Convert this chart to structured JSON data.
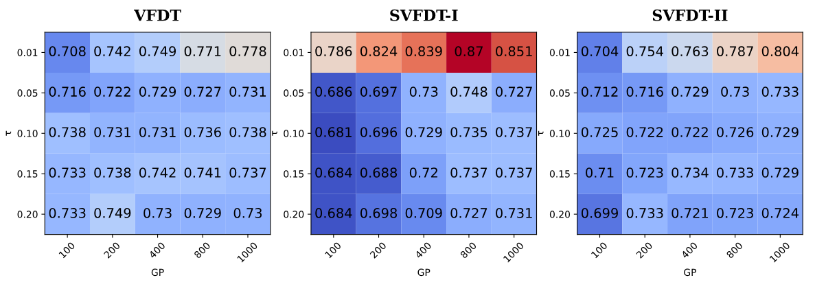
{
  "chart_data": [
    {
      "type": "heatmap",
      "title": "VFDT",
      "xlabel": "GP",
      "ylabel": "τ",
      "data_labels": true,
      "categories": [
        "100",
        "200",
        "400",
        "800",
        "1000"
      ],
      "y_categories": [
        "0.01",
        "0.05",
        "0.10",
        "0.15",
        "0.20"
      ],
      "cells": [
        [
          0.708,
          0.742,
          0.749,
          0.771,
          0.778
        ],
        [
          0.716,
          0.722,
          0.729,
          0.727,
          0.731
        ],
        [
          0.738,
          0.731,
          0.731,
          0.736,
          0.738
        ],
        [
          0.733,
          0.738,
          0.742,
          0.741,
          0.737
        ],
        [
          0.733,
          0.749,
          0.73,
          0.729,
          0.73
        ]
      ]
    },
    {
      "type": "heatmap",
      "title": "SVFDT-I",
      "xlabel": "GP",
      "ylabel": "τ",
      "data_labels": true,
      "categories": [
        "100",
        "200",
        "400",
        "800",
        "1000"
      ],
      "y_categories": [
        "0.01",
        "0.05",
        "0.10",
        "0.15",
        "0.20"
      ],
      "cells": [
        [
          0.786,
          0.824,
          0.839,
          0.87,
          0.851
        ],
        [
          0.686,
          0.697,
          0.73,
          0.748,
          0.727
        ],
        [
          0.681,
          0.696,
          0.729,
          0.735,
          0.737
        ],
        [
          0.684,
          0.688,
          0.72,
          0.737,
          0.737
        ],
        [
          0.684,
          0.698,
          0.709,
          0.727,
          0.731
        ]
      ]
    },
    {
      "type": "heatmap",
      "title": "SVFDT-II",
      "xlabel": "GP",
      "ylabel": "τ",
      "data_labels": true,
      "categories": [
        "100",
        "200",
        "400",
        "800",
        "1000"
      ],
      "y_categories": [
        "0.01",
        "0.05",
        "0.10",
        "0.15",
        "0.20"
      ],
      "cells": [
        [
          0.704,
          0.754,
          0.763,
          0.787,
          0.804
        ],
        [
          0.712,
          0.716,
          0.729,
          0.73,
          0.733
        ],
        [
          0.725,
          0.722,
          0.722,
          0.726,
          0.729
        ],
        [
          0.71,
          0.723,
          0.734,
          0.733,
          0.729
        ],
        [
          0.699,
          0.733,
          0.721,
          0.723,
          0.724
        ]
      ]
    }
  ]
}
